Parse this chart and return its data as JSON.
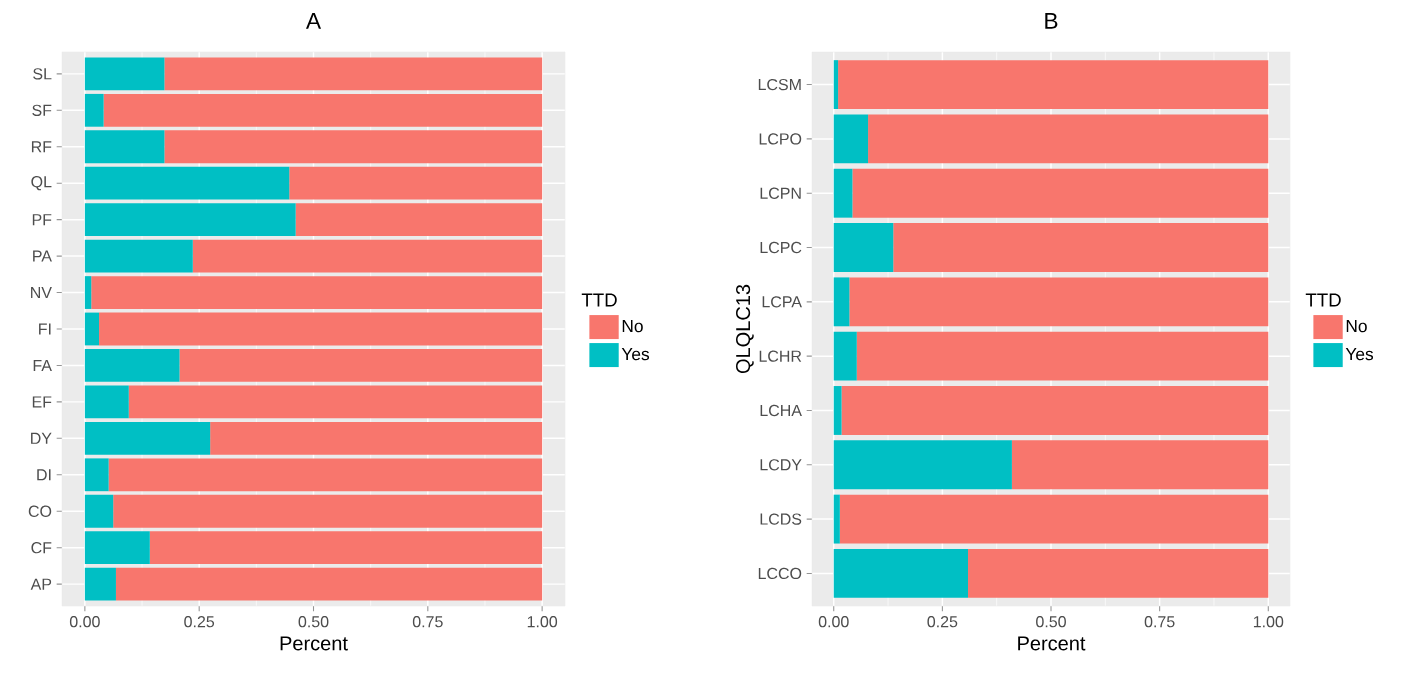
{
  "chart_data": [
    {
      "type": "bar",
      "orientation": "horizontal",
      "stacked": true,
      "title": "A",
      "xlabel": "Percent",
      "legend_title": "TTD",
      "legend": "right",
      "grid": true,
      "categories": [
        "SL",
        "SF",
        "RF",
        "QL",
        "PF",
        "PA",
        "NV",
        "FI",
        "FA",
        "EF",
        "DY",
        "DI",
        "CO",
        "CF",
        "AP"
      ],
      "series": [
        {
          "name": "Yes",
          "color": "#00bfc4",
          "values": [
            0.174,
            0.041,
            0.174,
            0.447,
            0.461,
            0.236,
            0.014,
            0.031,
            0.207,
            0.096,
            0.274,
            0.052,
            0.062,
            0.142,
            0.068
          ]
        },
        {
          "name": "No",
          "color": "#f8766d",
          "values": [
            0.826,
            0.959,
            0.826,
            0.553,
            0.539,
            0.764,
            0.986,
            0.969,
            0.793,
            0.904,
            0.726,
            0.948,
            0.938,
            0.858,
            0.932
          ]
        }
      ],
      "xlim": [
        -0.05,
        1.05
      ],
      "xticks": [
        {
          "value": 0,
          "label": "0.00"
        },
        {
          "value": 0.25,
          "label": "0.25"
        },
        {
          "value": 0.5,
          "label": "0.50"
        },
        {
          "value": 0.75,
          "label": "0.75"
        },
        {
          "value": 1,
          "label": "1.00"
        }
      ]
    },
    {
      "type": "bar",
      "orientation": "horizontal",
      "stacked": true,
      "title": "B",
      "xlabel": "Percent",
      "ylabel": "QLQLC13",
      "legend_title": "TTD",
      "legend": "right",
      "grid": true,
      "categories": [
        "LCSM",
        "LCPO",
        "LCPN",
        "LCPC",
        "LCPA",
        "LCHR",
        "LCHA",
        "LCDY",
        "LCDS",
        "LCCO"
      ],
      "series": [
        {
          "name": "Yes",
          "color": "#00bfc4",
          "values": [
            0.01,
            0.079,
            0.043,
            0.137,
            0.036,
            0.053,
            0.018,
            0.41,
            0.014,
            0.309
          ]
        },
        {
          "name": "No",
          "color": "#f8766d",
          "values": [
            0.99,
            0.921,
            0.957,
            0.863,
            0.964,
            0.947,
            0.982,
            0.59,
            0.986,
            0.691
          ]
        }
      ],
      "xlim": [
        -0.05,
        1.05
      ],
      "xticks": [
        {
          "value": 0,
          "label": "0.00"
        },
        {
          "value": 0.25,
          "label": "0.25"
        },
        {
          "value": 0.5,
          "label": "0.50"
        },
        {
          "value": 0.75,
          "label": "0.75"
        },
        {
          "value": 1,
          "label": "1.00"
        }
      ]
    }
  ]
}
